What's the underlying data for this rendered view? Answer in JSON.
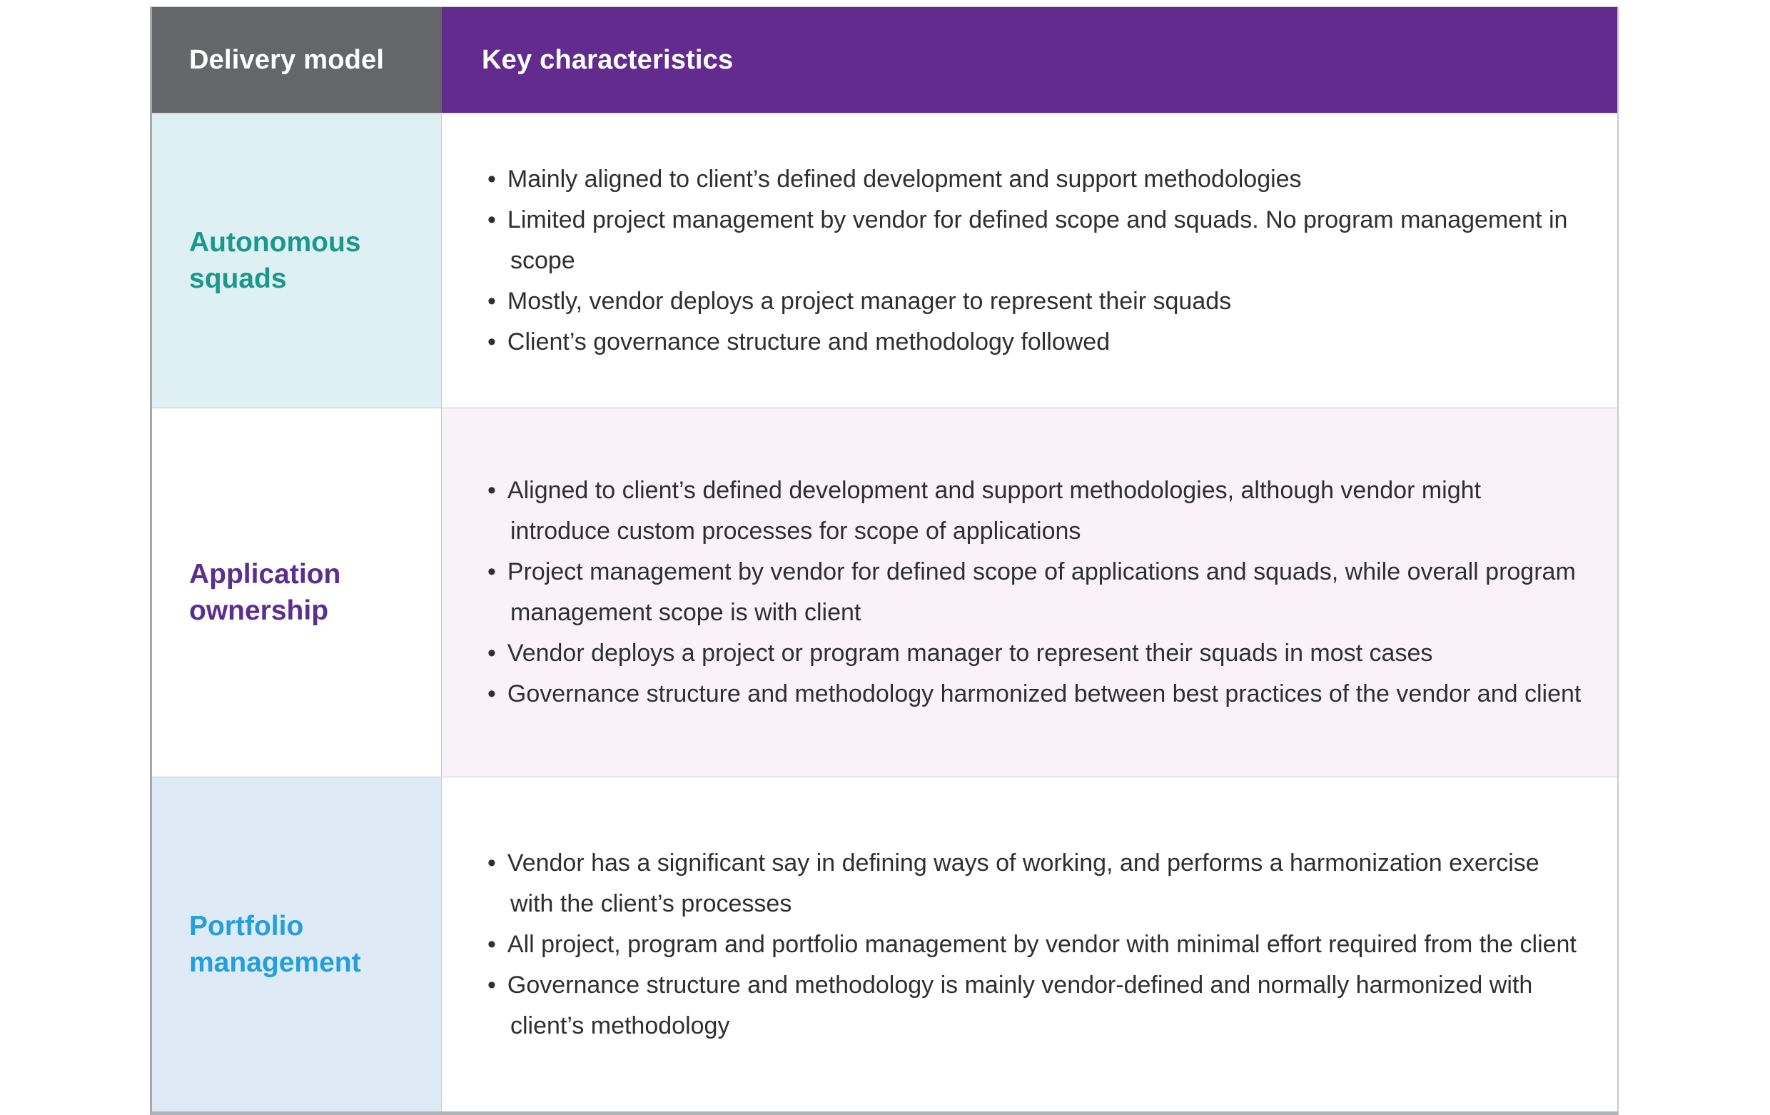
{
  "table": {
    "columns": [
      {
        "label": "Delivery model"
      },
      {
        "label": "Key characteristics"
      }
    ],
    "rows": [
      {
        "model": "Autonomous squads",
        "bullets": [
          "Mainly aligned to client’s defined development and support methodologies",
          "Limited project management by vendor for defined scope and squads. No program management in scope",
          "Mostly, vendor deploys a project manager to represent their squads",
          "Client’s governance structure and methodology followed"
        ]
      },
      {
        "model": "Application ownership",
        "bullets": [
          "Aligned to client’s defined development and support methodologies, although vendor might introduce custom processes for scope of applications",
          "Project management by vendor for defined scope of applications and squads, while overall program management scope is with client",
          "Vendor deploys a project or program manager to represent their squads in most cases",
          "Governance structure and methodology harmonized between best practices of the vendor and client"
        ]
      },
      {
        "model": "Portfolio management",
        "bullets": [
          "Vendor has a significant say in defining ways of working, and performs a harmonization exercise with the client’s processes",
          "All project, program and portfolio management by vendor with minimal effort required from the client",
          "Governance structure and methodology is mainly vendor-defined and normally harmonized with client’s methodology"
        ]
      }
    ]
  },
  "colors": {
    "header_model_bg": "#64666a",
    "header_chars_bg": "#622c8e",
    "header_text": "#ffffff",
    "row_autonomous_squads_bg": "#dff0f4",
    "row_autonomous_squads_text": "#1a998b",
    "row_application_ownership_bg": "#ffffff",
    "row_application_ownership_text": "#5c2e90",
    "row_application_ownership_chars_bg": "#f9f3f9",
    "row_portfolio_management_bg": "#deebf7",
    "row_portfolio_management_text": "#239fdb",
    "body_text": "#2f2f31"
  }
}
